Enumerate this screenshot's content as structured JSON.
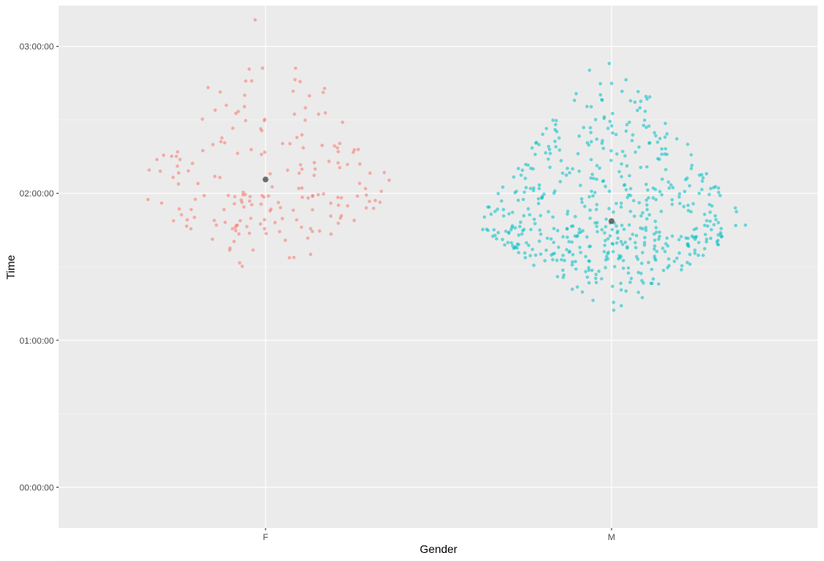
{
  "chart_data": {
    "type": "scatter",
    "subtype": "beeswarm",
    "xlabel": "Gender",
    "ylabel": "Time",
    "categories": [
      "F",
      "M"
    ],
    "y_unit": "seconds",
    "ylim": [
      -1000,
      11800
    ],
    "y_ticks": [
      {
        "value": 0,
        "label": "00:00:00"
      },
      {
        "value": 3600,
        "label": "01:00:00"
      },
      {
        "value": 7200,
        "label": "02:00:00"
      },
      {
        "value": 10800,
        "label": "03:00:00"
      }
    ],
    "grid": true,
    "legend": "none",
    "series": [
      {
        "category": "F",
        "color": "#F8766D",
        "point_count": 190,
        "min": 4860,
        "max": 11820,
        "median": 7240,
        "mean": 7540
      },
      {
        "category": "M",
        "color": "#00BFC4",
        "point_count": 540,
        "min": 4080,
        "max": 10950,
        "median": 6450,
        "mean": 6520
      }
    ],
    "summary_points": [
      {
        "category": "F",
        "y": 7540,
        "color": "#555555"
      },
      {
        "category": "M",
        "y": 6520,
        "color": "#555555"
      }
    ]
  }
}
